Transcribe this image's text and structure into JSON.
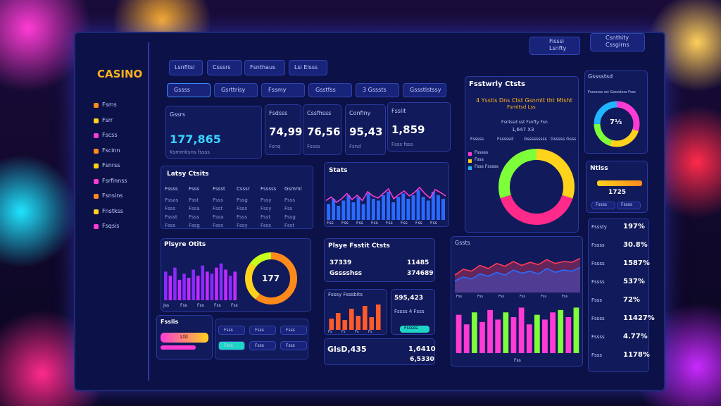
{
  "sidebar": {
    "logo": "CASINO",
    "items": [
      "Fsms",
      "Fsrr",
      "Fscss",
      "Fscinn",
      "Fsnrss",
      "Fsrfinnss",
      "Fsnsins",
      "Fnstkss",
      "Fsqsis"
    ]
  },
  "top_tabs": [
    "Lsnfitsi",
    "Csssrs",
    "Fsnthaus",
    "Lsi Elsss"
  ],
  "top_right": [
    "Fisssi Lsnfty",
    "Csnthity Cssgirns"
  ],
  "sub_tabs": [
    "Gssss",
    "Gsrttrisy",
    "Fssmy",
    "Gsstfss",
    "3 Gsssts",
    "Gssstlstssy"
  ],
  "kpis": [
    {
      "label": "Gssrs",
      "value": "177,865",
      "sub": "Ksmmksns fssss"
    },
    {
      "label": "Fsdsss",
      "value": "74,99",
      "sub": "Fsnq"
    },
    {
      "label": "Cssfhsss",
      "value": "76,56",
      "sub": "Fssss"
    },
    {
      "label": "Conflny",
      "value": "95,43",
      "sub": "Fsnd"
    },
    {
      "label": "Fsslit",
      "value": "1,859",
      "sub": "Fsss fsss"
    }
  ],
  "latest": {
    "title": "Latsy Ctsits",
    "columns": [
      "Fssss",
      "Fsss",
      "Fssst",
      "Csssr",
      "Fsssss",
      "Gsmml"
    ],
    "rows": [
      [
        "Fssas",
        "Fsst",
        "Fsss",
        "Fssg",
        "Fssy",
        "Fsss"
      ],
      [
        "Fsss",
        "Fssa",
        "Fsst",
        "Fsss",
        "Fssy",
        "Fss"
      ],
      [
        "Fssst",
        "Fsss",
        "Fssa",
        "Fsss",
        "Fsst",
        "Fssg"
      ],
      [
        "Fsss",
        "Fssg",
        "Fsss",
        "Fssy",
        "Fsss",
        "Fsst"
      ]
    ]
  },
  "stats": {
    "title": "Stats",
    "ylim": [
      0,
      100
    ],
    "bars": [
      45,
      60,
      40,
      55,
      70,
      50,
      65,
      45,
      75,
      60,
      55,
      70,
      80,
      50,
      65,
      75,
      60,
      70,
      85,
      65,
      55,
      80,
      70,
      60
    ],
    "line": [
      55,
      65,
      50,
      60,
      75,
      58,
      70,
      55,
      80,
      68,
      62,
      75,
      88,
      60,
      72,
      82,
      68,
      78,
      92,
      75,
      62,
      86,
      78,
      68
    ],
    "labels": [
      "Fss",
      "Fss",
      "Fss",
      "Fss",
      "Fss",
      "Fss",
      "Fss",
      "Fss"
    ]
  },
  "player_stats": {
    "title": "Plsyre Otits",
    "ylim": [
      0,
      100
    ],
    "bars": [
      70,
      60,
      80,
      50,
      65,
      55,
      75,
      60,
      85,
      70,
      65,
      80,
      90,
      75,
      60,
      70
    ],
    "labels": [
      "Jss",
      "Fss",
      "Fss",
      "Fss",
      "Fss"
    ],
    "donut_label": "177",
    "donut": [
      {
        "color": "#ff8a1c",
        "value": 60
      },
      {
        "color": "#ffd21c",
        "value": 25
      },
      {
        "color": "#c8ff1c",
        "value": 15
      }
    ]
  },
  "player_profit": {
    "title": "Plsye Fsstit Ctsts",
    "rows": [
      [
        "37339",
        "11485"
      ],
      [
        "Gsssshss",
        "374689"
      ]
    ]
  },
  "small_chart": {
    "title": "Fsssy Fsssbits",
    "ylim": [
      0,
      100
    ],
    "bars": [
      40,
      60,
      35,
      75,
      50,
      85,
      45,
      90
    ],
    "labels": [
      "Fs",
      "Fs",
      "Fs",
      "Fs"
    ]
  },
  "side_values": {
    "value": "595,423",
    "sub": "Fssss 4 Fsss",
    "button": "Fsssss"
  },
  "gross": {
    "title": "GlsD,435",
    "value": "1,6410",
    "sub": "6,5330"
  },
  "featured": {
    "title": "Fsstwrly Ctsts",
    "headline": "4 Ysstis Dns Ctst Gsnmlt tht Mtsht",
    "subline": "Fsmltsd Lss",
    "caption": "Fsntssd sst Fsnfty Fsn",
    "value": "1,647 X3",
    "legend": [
      "Fsssss",
      "Fsssssd",
      "Gsssssssss",
      "Gsssss Gsss"
    ],
    "legend2": [
      "Fsssss",
      "Fsss",
      "Fsss Fsssss"
    ],
    "donut": [
      {
        "color": "#ffd21c",
        "value": 30
      },
      {
        "color": "#ff2a8a",
        "value": 40
      },
      {
        "color": "#7dff3a",
        "value": 30
      }
    ]
  },
  "corner_donut": {
    "title": "Gsssstsd",
    "subtitle": "Fsssssss sst Gsssstsss Fsss",
    "label": "7⅓",
    "donut": [
      {
        "color": "#ff3bd4",
        "value": 30
      },
      {
        "color": "#ffd21c",
        "value": 25
      },
      {
        "color": "#7dff3a",
        "value": 20
      },
      {
        "color": "#1fb6ff",
        "value": 25
      }
    ]
  },
  "notes": {
    "title": "Ntiss",
    "value": "1725",
    "buttons": [
      "Fssss",
      "Fssss"
    ]
  },
  "area": {
    "title": "Gssts",
    "ylim": [
      0,
      100
    ],
    "series": [
      {
        "color": "#ff3b5c",
        "values": [
          45,
          60,
          55,
          70,
          62,
          75,
          68,
          80,
          70,
          78,
          72,
          85,
          75,
          80,
          78,
          88
        ]
      },
      {
        "color": "#2a6bff",
        "values": [
          30,
          40,
          35,
          48,
          42,
          52,
          45,
          58,
          50,
          55,
          48,
          62,
          52,
          58,
          55,
          65
        ]
      }
    ],
    "labels": [
      "Fss",
      "Fss",
      "Fss",
      "Fss",
      "Fss",
      "Fss"
    ]
  },
  "color_bars": {
    "ylim": [
      0,
      100
    ],
    "values": [
      80,
      60,
      85,
      65,
      90,
      70,
      85,
      75,
      95,
      60,
      80,
      70,
      85,
      90,
      75,
      95
    ],
    "colors": [
      "#ff3bd4",
      "#ff3bd4",
      "#7dff3a",
      "#ff3bd4",
      "#ff3bd4",
      "#ff3bd4",
      "#7dff3a",
      "#ff3bd4",
      "#ff3bd4",
      "#ff3bd4",
      "#7dff3a",
      "#ff3bd4",
      "#ff3bd4",
      "#7dff3a",
      "#ff3bd4",
      "#7dff3a"
    ],
    "label": "Fss"
  },
  "ranking": {
    "rows": [
      [
        "Fsssty",
        "197%"
      ],
      [
        "Fssss",
        "30.8%"
      ],
      [
        "Fssss",
        "1587%"
      ],
      [
        "Fssss",
        "537%"
      ],
      [
        "Fsss",
        "72%"
      ],
      [
        "Fssss",
        "11427%"
      ],
      [
        "Fssss",
        "4.77%"
      ],
      [
        "Fsss",
        "1178%"
      ]
    ]
  },
  "bottom_left": {
    "title": "Fsslis",
    "bar_label": "Lfd",
    "buttons": [
      "Fsss",
      "Fsss",
      "Fsss",
      "Fsss",
      "Fsss",
      "Fsss"
    ]
  }
}
